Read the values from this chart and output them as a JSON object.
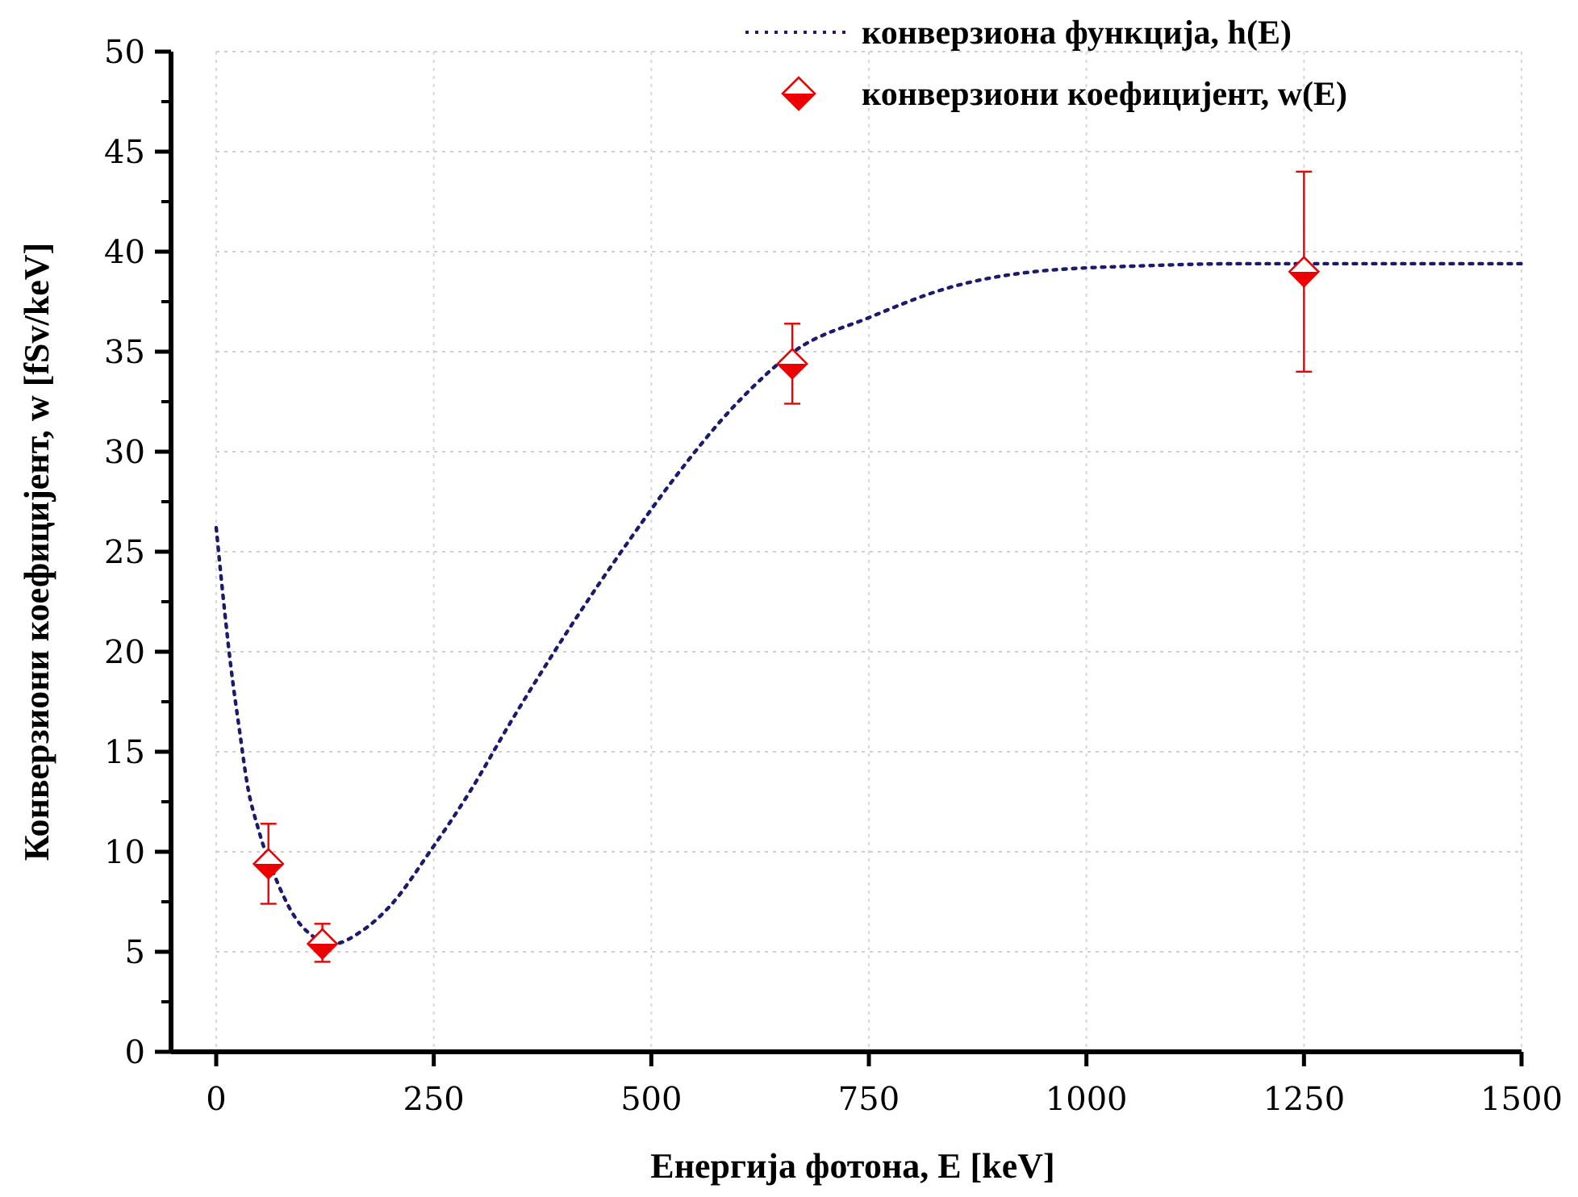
{
  "chart_data": {
    "type": "line",
    "xlabel": "Енергија фотона, E [keV]",
    "ylabel": "Конверзиони коефицијент, w [fSv/keV]",
    "xlim": [
      0,
      1500
    ],
    "xticks": [
      0,
      250,
      500,
      750,
      1000,
      1250,
      1500
    ],
    "ylim": [
      0,
      50
    ],
    "yticks": [
      0,
      5,
      10,
      15,
      20,
      25,
      30,
      35,
      40,
      45,
      50
    ],
    "grid": true,
    "legend": "top right",
    "series": [
      {
        "name": "конверзиона функција, h(E)",
        "color": "#1a1a6e",
        "line_style": "dotted",
        "marker": "none",
        "x": [
          0,
          10,
          17,
          27,
          36,
          48,
          70,
          98,
          135,
          166,
          200,
          247,
          290,
          340,
          390,
          440,
          480,
          520,
          600,
          667,
          750,
          842,
          940,
          1070,
          1180,
          1500
        ],
        "values": [
          26.2,
          21.9,
          19.2,
          16.0,
          13.3,
          11.2,
          8.5,
          6.3,
          5.4,
          6.0,
          7.3,
          10.1,
          12.9,
          16.6,
          20.1,
          23.4,
          25.9,
          28.3,
          32.5,
          35.1,
          36.7,
          38.2,
          39.0,
          39.3,
          39.4,
          39.4
        ]
      },
      {
        "name": "конверзиони коефицијент, w(E)",
        "type": "scatter",
        "color": "#ee0000",
        "marker": "diamond",
        "x": [
          60,
          122,
          662,
          1250
        ],
        "values": [
          9.4,
          5.4,
          34.4,
          39.0
        ],
        "errors": [
          [
            7.4,
            11.4
          ],
          [
            4.5,
            6.4
          ],
          [
            32.4,
            36.4
          ],
          [
            34.0,
            44.0
          ]
        ]
      }
    ]
  }
}
